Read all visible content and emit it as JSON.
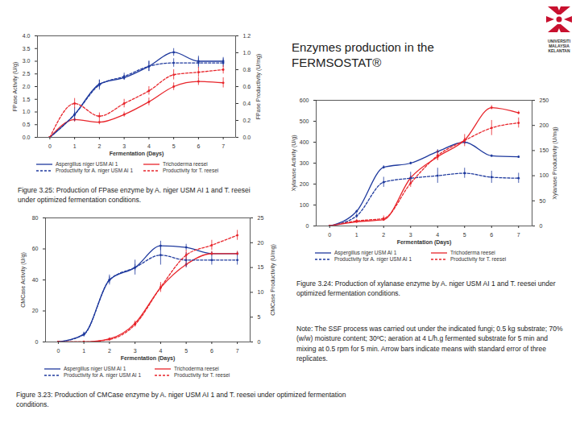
{
  "page": {
    "title": "Enzymes production in the FERMSOSTAT®",
    "logo": [
      "UNIVERSITI",
      "MALAYSIA",
      "KELANTAN"
    ],
    "note": "Note: The SSF process was carried out under the indicated fungi; 0.5 kg substrate; 70% (w/w) moisture content; 30ºC; aeration at 4 L/h.g fermented substrate for 5 min and mixing at 0.5 rpm for 5 min. Arrow bars indicate means with standard error of three replicates."
  },
  "chart_data": [
    {
      "type": "line",
      "title": "Figure 3.25: Production of FPase enzyme by A. niger USM AI 1 and T. reesei under optimized fermentation conditions.",
      "x_label": "Fermentation (Days)",
      "y_label": "FPase Activity (U/g)",
      "y2_label": "FPase Productivity (U/mg)",
      "x": [
        0,
        1,
        2,
        3,
        4,
        5,
        6,
        7
      ],
      "xlim": [
        -0.5,
        7.5
      ],
      "xticks": [
        0,
        1,
        2,
        3,
        4,
        5,
        6,
        7
      ],
      "ylim": [
        0,
        4
      ],
      "yticks": [
        {
          "value": 0,
          "label": "0.0"
        },
        0.5,
        {
          "value": 1,
          "label": "1.0"
        },
        1.5,
        {
          "value": 2,
          "label": "2.0"
        },
        2.5,
        {
          "value": 3,
          "label": "3.0"
        },
        3.5,
        {
          "value": 4,
          "label": "4.0"
        }
      ],
      "y2lim": [
        0,
        1.2
      ],
      "y2ticks": [
        {
          "value": 0,
          "label": "0.0"
        },
        0.2,
        0.4,
        0.6,
        0.8,
        {
          "value": 1,
          "label": "1.0"
        },
        1.2
      ],
      "grid": false,
      "legend": "bottom",
      "marker": "circle",
      "series": [
        {
          "name": "Aspergillus niger USM AI 1",
          "color": "#1f3a9e",
          "line_style": "solid",
          "values": [
            0.0,
            0.9,
            2.1,
            2.35,
            2.8,
            3.35,
            3.0,
            3.0
          ],
          "errors": [
            0,
            0.1,
            0.15,
            0.1,
            0.2,
            0.15,
            0.2,
            0.15
          ]
        },
        {
          "name": "Trichoderma reesei",
          "color": "#e8252b",
          "line_style": "solid",
          "values": [
            0.0,
            0.7,
            0.6,
            0.9,
            1.4,
            2.0,
            2.2,
            2.15
          ],
          "errors": [
            0,
            0.1,
            0.1,
            0.1,
            0.15,
            0.15,
            0.15,
            0.2
          ]
        },
        {
          "name": "Productivity for A. niger USM AI 1",
          "color": "#1f3a9e",
          "line_style": "dashed",
          "axis": "y2",
          "values": [
            0.0,
            0.27,
            0.62,
            0.72,
            0.84,
            0.88,
            0.88,
            0.88
          ],
          "errors": [
            0,
            0.08,
            0.06,
            0.04,
            0.06,
            0.05,
            0.06,
            0.05
          ]
        },
        {
          "name": "Productivity for T. reesei",
          "color": "#e8252b",
          "line_style": "dashed",
          "axis": "y2",
          "values": [
            0.0,
            0.4,
            0.25,
            0.4,
            0.55,
            0.74,
            0.77,
            0.8
          ],
          "errors": [
            0,
            0.06,
            0.04,
            0.05,
            0.05,
            0.06,
            0.06,
            0.05
          ]
        }
      ]
    },
    {
      "type": "line",
      "title": "Figure 3.24: Production of xylanase enzyme by A. niger USM AI 1 and T. reesei under optimized fermentation conditions.",
      "x_label": "Fermentation (Days)",
      "y_label": "Xylanase Activity (U/g)",
      "y2_label": "Xylanase Productivity (U/mg)",
      "x": [
        0,
        1,
        2,
        3,
        4,
        5,
        6,
        7
      ],
      "xlim": [
        -0.5,
        7.5
      ],
      "xticks": [
        0,
        1,
        2,
        3,
        4,
        5,
        6,
        7
      ],
      "ylim": [
        0,
        600
      ],
      "yticks": [
        0,
        100,
        200,
        300,
        400,
        500,
        600
      ],
      "y2lim": [
        0,
        250
      ],
      "y2ticks": [
        0,
        50,
        100,
        150,
        200,
        250
      ],
      "grid": false,
      "legend": "bottom",
      "marker": "circle",
      "series": [
        {
          "name": "Aspergillus niger USM AI 1",
          "color": "#1f3a9e",
          "line_style": "solid",
          "values": [
            0,
            70,
            280,
            300,
            355,
            400,
            335,
            330
          ],
          "errors": [
            0,
            5,
            8,
            5,
            10,
            10,
            5,
            5
          ]
        },
        {
          "name": "Trichoderma reesei",
          "color": "#e8252b",
          "line_style": "solid",
          "values": [
            0,
            20,
            30,
            230,
            330,
            410,
            565,
            540
          ],
          "errors": [
            0,
            5,
            5,
            10,
            15,
            10,
            10,
            8
          ]
        },
        {
          "name": "Productivity for A. niger USM AI 1",
          "color": "#1f3a9e",
          "line_style": "dashed",
          "axis": "y2",
          "values": [
            0,
            20,
            87,
            95,
            100,
            105,
            97,
            95
          ],
          "errors": [
            0,
            5,
            10,
            12,
            15,
            10,
            12,
            10
          ]
        },
        {
          "name": "Productivity for T. reesei",
          "color": "#e8252b",
          "line_style": "dashed",
          "axis": "y2",
          "values": [
            0,
            10,
            15,
            85,
            140,
            170,
            195,
            205
          ],
          "errors": [
            0,
            3,
            5,
            8,
            10,
            12,
            15,
            10
          ]
        }
      ]
    },
    {
      "type": "line",
      "title": "Figure 3.23: Production of CMCase enzyme by A. niger USM AI 1 and T. reesei under optimized fermentation conditions.",
      "x_label": "Fermentation (Days)",
      "y_label": "CMCase Activity (U/g)",
      "y2_label": "CMCase Productivity (U/mg)",
      "x": [
        0,
        1,
        2,
        3,
        4,
        5,
        6,
        7
      ],
      "xlim": [
        -0.5,
        7.5
      ],
      "xticks": [
        0,
        1,
        2,
        3,
        4,
        5,
        6,
        7
      ],
      "ylim": [
        0,
        80
      ],
      "yticks": [
        0,
        20,
        40,
        60,
        80
      ],
      "y2lim": [
        0,
        25
      ],
      "y2ticks": [
        0,
        5,
        10,
        15,
        20,
        25
      ],
      "grid": false,
      "legend": "bottom",
      "marker": "circle",
      "series": [
        {
          "name": "Aspergillus niger USM AI 1",
          "color": "#1f3a9e",
          "line_style": "solid",
          "values": [
            0,
            5,
            40,
            48,
            62,
            61,
            57,
            57
          ],
          "errors": [
            0,
            1,
            2,
            2,
            3,
            2,
            1,
            1
          ]
        },
        {
          "name": "Trichoderma reesei",
          "color": "#e8252b",
          "line_style": "solid",
          "values": [
            0,
            0,
            2,
            12,
            35,
            50,
            57,
            57
          ],
          "errors": [
            0,
            0.5,
            0.5,
            1.5,
            2,
            2,
            1.5,
            1.5
          ]
        },
        {
          "name": "Productivity for A. niger USM AI 1",
          "color": "#1f3a9e",
          "line_style": "dashed",
          "axis": "y2",
          "values": [
            0,
            1.5,
            12.5,
            15,
            17.5,
            16.5,
            16.5,
            16.5
          ],
          "errors": [
            0,
            0.5,
            1,
            1.5,
            2,
            1.5,
            1,
            1
          ]
        },
        {
          "name": "Productivity for T. reesei",
          "color": "#e8252b",
          "line_style": "dashed",
          "axis": "y2",
          "values": [
            0,
            0,
            0.5,
            3.5,
            11,
            17.5,
            19.5,
            21.5
          ],
          "errors": [
            0,
            0.2,
            0.2,
            0.5,
            1,
            1,
            1,
            1
          ]
        }
      ]
    }
  ]
}
